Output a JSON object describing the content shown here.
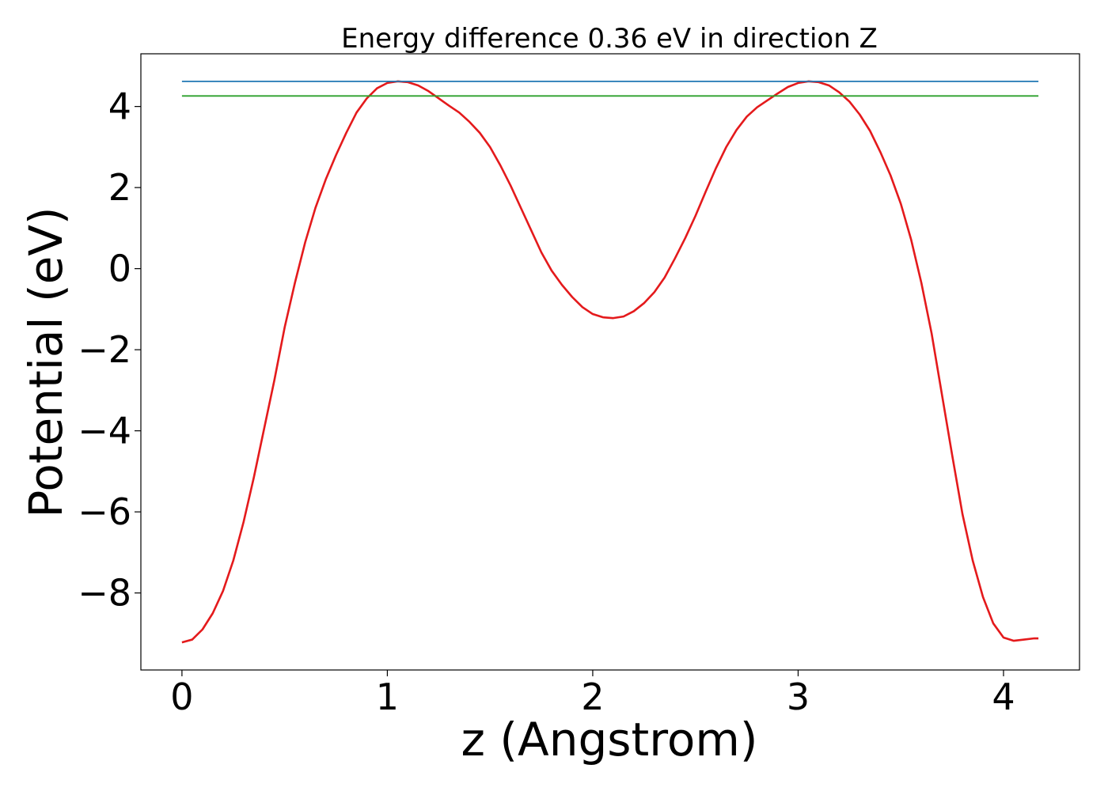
{
  "chart_data": {
    "type": "line",
    "title": "Energy difference 0.36 eV in direction Z",
    "xlabel": "z (Angstrom)",
    "ylabel": "Potential (eV)",
    "xlim": [
      -0.2,
      4.37
    ],
    "ylim": [
      -9.9,
      5.3
    ],
    "x_ticks": [
      0,
      1,
      2,
      3,
      4
    ],
    "y_ticks": [
      4,
      2,
      0,
      -2,
      -4,
      -6,
      -8
    ],
    "x_tick_labels": [
      "0",
      "1",
      "2",
      "3",
      "4"
    ],
    "y_tick_labels": [
      "4",
      "2",
      "0",
      "−2",
      "−4",
      "−6",
      "−8"
    ],
    "grid": false,
    "legend": "none",
    "colors": {
      "potential": "#e41a1c",
      "max": "#1f77b4",
      "second": "#2ca02c"
    },
    "series": [
      {
        "x": [
          0,
          0.05,
          0.1,
          0.15,
          0.2,
          0.25,
          0.3,
          0.35,
          0.4,
          0.45,
          0.5,
          0.55,
          0.6,
          0.65,
          0.7,
          0.75,
          0.8,
          0.85,
          0.9,
          0.95,
          1.0,
          1.05,
          1.1,
          1.15,
          1.2,
          1.25,
          1.3,
          1.35,
          1.4,
          1.45,
          1.5,
          1.55,
          1.6,
          1.65,
          1.7,
          1.75,
          1.8,
          1.85,
          1.9,
          1.95,
          2.0,
          2.05,
          2.1,
          2.15,
          2.2,
          2.25,
          2.3,
          2.35,
          2.4,
          2.45,
          2.5,
          2.55,
          2.6,
          2.65,
          2.7,
          2.75,
          2.8,
          2.85,
          2.9,
          2.95,
          3.0,
          3.05,
          3.1,
          3.15,
          3.2,
          3.25,
          3.3,
          3.35,
          3.4,
          3.45,
          3.5,
          3.55,
          3.6,
          3.65,
          3.7,
          3.75,
          3.8,
          3.85,
          3.9,
          3.95,
          4.0,
          4.05,
          4.1,
          4.15,
          4.17
        ],
        "values": [
          -9.22,
          -9.15,
          -8.9,
          -8.5,
          -7.95,
          -7.2,
          -6.25,
          -5.15,
          -3.95,
          -2.75,
          -1.45,
          -0.35,
          0.65,
          1.5,
          2.2,
          2.8,
          3.35,
          3.85,
          4.2,
          4.45,
          4.58,
          4.62,
          4.6,
          4.52,
          4.38,
          4.2,
          4.02,
          3.85,
          3.62,
          3.35,
          3.0,
          2.55,
          2.05,
          1.5,
          0.95,
          0.4,
          -0.05,
          -0.4,
          -0.7,
          -0.95,
          -1.12,
          -1.2,
          -1.22,
          -1.18,
          -1.05,
          -0.85,
          -0.58,
          -0.22,
          0.25,
          0.75,
          1.3,
          1.9,
          2.48,
          3.0,
          3.42,
          3.75,
          3.98,
          4.15,
          4.32,
          4.48,
          4.58,
          4.62,
          4.6,
          4.52,
          4.35,
          4.12,
          3.8,
          3.4,
          2.88,
          2.3,
          1.6,
          0.72,
          -0.35,
          -1.6,
          -3.1,
          -4.6,
          -6.05,
          -7.2,
          -8.1,
          -8.75,
          -9.1,
          -9.18,
          -9.15,
          -9.12,
          -9.12
        ],
        "color": "#e41a1c"
      },
      {
        "x": [
          0,
          4.17
        ],
        "values": [
          4.62,
          4.62
        ],
        "color": "#1f77b4"
      },
      {
        "x": [
          0,
          4.17
        ],
        "values": [
          4.26,
          4.26
        ],
        "color": "#2ca02c"
      }
    ]
  }
}
